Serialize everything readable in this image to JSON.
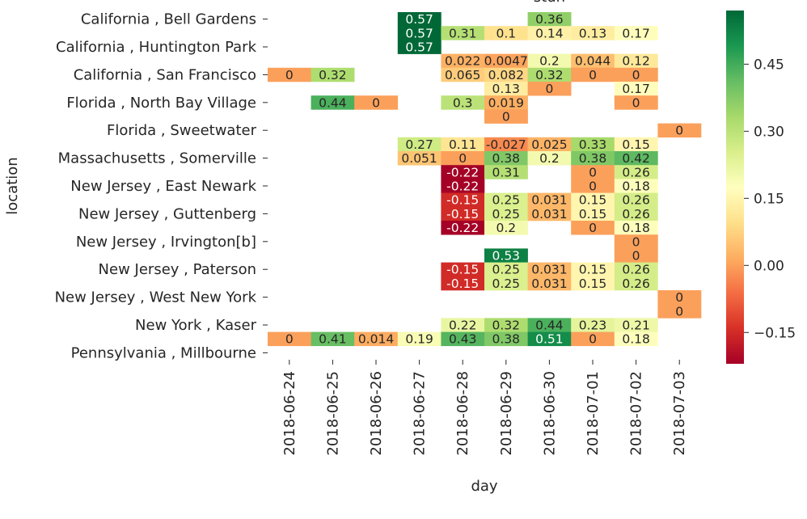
{
  "chart_data": {
    "type": "heatmap",
    "title": "stun",
    "xlabel": "day",
    "ylabel": "location",
    "x_categories": [
      "2018-06-24",
      "2018-06-25",
      "2018-06-26",
      "2018-06-27",
      "2018-06-28",
      "2018-06-29",
      "2018-06-30",
      "2018-07-01",
      "2018-07-02",
      "2018-07-03"
    ],
    "y_tick_labels": [
      {
        "row": 0,
        "label": "California , Bell Gardens"
      },
      {
        "row": 2,
        "label": "California , Huntington Park"
      },
      {
        "row": 4,
        "label": "California , San Francisco"
      },
      {
        "row": 6,
        "label": "Florida , North Bay Village"
      },
      {
        "row": 8,
        "label": "Florida , Sweetwater"
      },
      {
        "row": 10,
        "label": "Massachusetts , Somerville"
      },
      {
        "row": 12,
        "label": "New Jersey , East Newark"
      },
      {
        "row": 14,
        "label": "New Jersey , Guttenberg"
      },
      {
        "row": 16,
        "label": "New Jersey , Irvington[b]"
      },
      {
        "row": 18,
        "label": "New Jersey , Paterson"
      },
      {
        "row": 20,
        "label": "New Jersey , West New York"
      },
      {
        "row": 22,
        "label": "New York , Kaser"
      },
      {
        "row": 24,
        "label": "Pennsylvania , Millbourne"
      }
    ],
    "cells": [
      {
        "row": 0,
        "col": 3,
        "value": 0.57,
        "label": "0.57"
      },
      {
        "row": 0,
        "col": 6,
        "value": 0.36,
        "label": "0.36"
      },
      {
        "row": 1,
        "col": 3,
        "value": 0.57,
        "label": "0.57"
      },
      {
        "row": 1,
        "col": 4,
        "value": 0.31,
        "label": "0.31"
      },
      {
        "row": 1,
        "col": 5,
        "value": 0.1,
        "label": "0.1"
      },
      {
        "row": 1,
        "col": 6,
        "value": 0.14,
        "label": "0.14"
      },
      {
        "row": 1,
        "col": 7,
        "value": 0.13,
        "label": "0.13"
      },
      {
        "row": 1,
        "col": 8,
        "value": 0.17,
        "label": "0.17"
      },
      {
        "row": 2,
        "col": 3,
        "value": 0.57,
        "label": "0.57"
      },
      {
        "row": 3,
        "col": 4,
        "value": 0.022,
        "label": "0.022"
      },
      {
        "row": 3,
        "col": 5,
        "value": 0.0047,
        "label": "0.0047"
      },
      {
        "row": 3,
        "col": 6,
        "value": 0.2,
        "label": "0.2"
      },
      {
        "row": 3,
        "col": 7,
        "value": 0.044,
        "label": "0.044"
      },
      {
        "row": 3,
        "col": 8,
        "value": 0.12,
        "label": "0.12"
      },
      {
        "row": 4,
        "col": 0,
        "value": 0,
        "label": "0"
      },
      {
        "row": 4,
        "col": 1,
        "value": 0.32,
        "label": "0.32"
      },
      {
        "row": 4,
        "col": 4,
        "value": 0.065,
        "label": "0.065"
      },
      {
        "row": 4,
        "col": 5,
        "value": 0.082,
        "label": "0.082"
      },
      {
        "row": 4,
        "col": 6,
        "value": 0.32,
        "label": "0.32"
      },
      {
        "row": 4,
        "col": 7,
        "value": 0,
        "label": "0"
      },
      {
        "row": 4,
        "col": 8,
        "value": 0,
        "label": "0"
      },
      {
        "row": 5,
        "col": 5,
        "value": 0.13,
        "label": "0.13"
      },
      {
        "row": 5,
        "col": 6,
        "value": 0,
        "label": "0"
      },
      {
        "row": 5,
        "col": 8,
        "value": 0.17,
        "label": "0.17"
      },
      {
        "row": 6,
        "col": 1,
        "value": 0.44,
        "label": "0.44"
      },
      {
        "row": 6,
        "col": 2,
        "value": 0,
        "label": "0"
      },
      {
        "row": 6,
        "col": 4,
        "value": 0.3,
        "label": "0.3"
      },
      {
        "row": 6,
        "col": 5,
        "value": 0.019,
        "label": "0.019"
      },
      {
        "row": 6,
        "col": 8,
        "value": 0,
        "label": "0"
      },
      {
        "row": 7,
        "col": 5,
        "value": 0,
        "label": "0"
      },
      {
        "row": 8,
        "col": 9,
        "value": 0,
        "label": "0"
      },
      {
        "row": 9,
        "col": 3,
        "value": 0.27,
        "label": "0.27"
      },
      {
        "row": 9,
        "col": 4,
        "value": 0.11,
        "label": "0.11"
      },
      {
        "row": 9,
        "col": 5,
        "value": -0.027,
        "label": "-0.027"
      },
      {
        "row": 9,
        "col": 6,
        "value": 0.025,
        "label": "0.025"
      },
      {
        "row": 9,
        "col": 7,
        "value": 0.33,
        "label": "0.33"
      },
      {
        "row": 9,
        "col": 8,
        "value": 0.15,
        "label": "0.15"
      },
      {
        "row": 10,
        "col": 3,
        "value": 0.051,
        "label": "0.051"
      },
      {
        "row": 10,
        "col": 4,
        "value": 0,
        "label": "0"
      },
      {
        "row": 10,
        "col": 5,
        "value": 0.38,
        "label": "0.38"
      },
      {
        "row": 10,
        "col": 6,
        "value": 0.2,
        "label": "0.2"
      },
      {
        "row": 10,
        "col": 7,
        "value": 0.38,
        "label": "0.38"
      },
      {
        "row": 10,
        "col": 8,
        "value": 0.42,
        "label": "0.42"
      },
      {
        "row": 11,
        "col": 4,
        "value": -0.22,
        "label": "-0.22"
      },
      {
        "row": 11,
        "col": 5,
        "value": 0.31,
        "label": "0.31"
      },
      {
        "row": 11,
        "col": 7,
        "value": 0,
        "label": "0"
      },
      {
        "row": 11,
        "col": 8,
        "value": 0.26,
        "label": "0.26"
      },
      {
        "row": 12,
        "col": 4,
        "value": -0.22,
        "label": "-0.22"
      },
      {
        "row": 12,
        "col": 7,
        "value": 0,
        "label": "0"
      },
      {
        "row": 12,
        "col": 8,
        "value": 0.18,
        "label": "0.18"
      },
      {
        "row": 13,
        "col": 4,
        "value": -0.15,
        "label": "-0.15"
      },
      {
        "row": 13,
        "col": 5,
        "value": 0.25,
        "label": "0.25"
      },
      {
        "row": 13,
        "col": 6,
        "value": 0.031,
        "label": "0.031"
      },
      {
        "row": 13,
        "col": 7,
        "value": 0.15,
        "label": "0.15"
      },
      {
        "row": 13,
        "col": 8,
        "value": 0.26,
        "label": "0.26"
      },
      {
        "row": 14,
        "col": 4,
        "value": -0.15,
        "label": "-0.15"
      },
      {
        "row": 14,
        "col": 5,
        "value": 0.25,
        "label": "0.25"
      },
      {
        "row": 14,
        "col": 6,
        "value": 0.031,
        "label": "0.031"
      },
      {
        "row": 14,
        "col": 7,
        "value": 0.15,
        "label": "0.15"
      },
      {
        "row": 14,
        "col": 8,
        "value": 0.26,
        "label": "0.26"
      },
      {
        "row": 15,
        "col": 4,
        "value": -0.22,
        "label": "-0.22"
      },
      {
        "row": 15,
        "col": 5,
        "value": 0.2,
        "label": "0.2"
      },
      {
        "row": 15,
        "col": 7,
        "value": 0,
        "label": "0"
      },
      {
        "row": 15,
        "col": 8,
        "value": 0.18,
        "label": "0.18"
      },
      {
        "row": 16,
        "col": 8,
        "value": 0,
        "label": "0"
      },
      {
        "row": 17,
        "col": 5,
        "value": 0.53,
        "label": "0.53"
      },
      {
        "row": 17,
        "col": 8,
        "value": 0,
        "label": "0"
      },
      {
        "row": 18,
        "col": 4,
        "value": -0.15,
        "label": "-0.15"
      },
      {
        "row": 18,
        "col": 5,
        "value": 0.25,
        "label": "0.25"
      },
      {
        "row": 18,
        "col": 6,
        "value": 0.031,
        "label": "0.031"
      },
      {
        "row": 18,
        "col": 7,
        "value": 0.15,
        "label": "0.15"
      },
      {
        "row": 18,
        "col": 8,
        "value": 0.26,
        "label": "0.26"
      },
      {
        "row": 19,
        "col": 4,
        "value": -0.15,
        "label": "-0.15"
      },
      {
        "row": 19,
        "col": 5,
        "value": 0.25,
        "label": "0.25"
      },
      {
        "row": 19,
        "col": 6,
        "value": 0.031,
        "label": "0.031"
      },
      {
        "row": 19,
        "col": 7,
        "value": 0.15,
        "label": "0.15"
      },
      {
        "row": 19,
        "col": 8,
        "value": 0.26,
        "label": "0.26"
      },
      {
        "row": 20,
        "col": 9,
        "value": 0,
        "label": "0"
      },
      {
        "row": 21,
        "col": 9,
        "value": 0,
        "label": "0"
      },
      {
        "row": 22,
        "col": 4,
        "value": 0.22,
        "label": "0.22"
      },
      {
        "row": 22,
        "col": 5,
        "value": 0.32,
        "label": "0.32"
      },
      {
        "row": 22,
        "col": 6,
        "value": 0.44,
        "label": "0.44"
      },
      {
        "row": 22,
        "col": 7,
        "value": 0.23,
        "label": "0.23"
      },
      {
        "row": 22,
        "col": 8,
        "value": 0.21,
        "label": "0.21"
      },
      {
        "row": 23,
        "col": 0,
        "value": 0,
        "label": "0"
      },
      {
        "row": 23,
        "col": 1,
        "value": 0.41,
        "label": "0.41"
      },
      {
        "row": 23,
        "col": 2,
        "value": 0.014,
        "label": "0.014"
      },
      {
        "row": 23,
        "col": 3,
        "value": 0.19,
        "label": "0.19"
      },
      {
        "row": 23,
        "col": 4,
        "value": 0.43,
        "label": "0.43"
      },
      {
        "row": 23,
        "col": 5,
        "value": 0.38,
        "label": "0.38"
      },
      {
        "row": 23,
        "col": 6,
        "value": 0.51,
        "label": "0.51"
      },
      {
        "row": 23,
        "col": 7,
        "value": 0,
        "label": "0"
      },
      {
        "row": 23,
        "col": 8,
        "value": 0.18,
        "label": "0.18"
      }
    ],
    "colormap": "RdYlGn",
    "vmin": -0.22,
    "vmax": 0.57,
    "colorbar_ticks": [
      {
        "value": 0.45,
        "label": "0.45"
      },
      {
        "value": 0.3,
        "label": "0.30"
      },
      {
        "value": 0.15,
        "label": "0.15"
      },
      {
        "value": 0.0,
        "label": "0.00"
      },
      {
        "value": -0.15,
        "label": "−0.15"
      }
    ],
    "grid": false,
    "legend": "colorbar-right"
  }
}
